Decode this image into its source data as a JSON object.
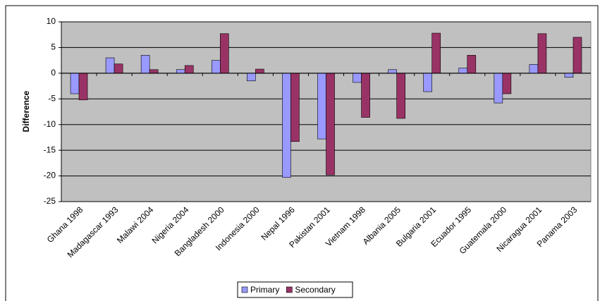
{
  "chart_data": {
    "type": "bar",
    "y_label": "Difference",
    "categories": [
      "Ghana 1998",
      "Madagascar 1993",
      "Malawi 2004",
      "Nigeria 2004",
      "Bangladesh 2000",
      "Indonesia 2000",
      "Nepal 1996",
      "Pakistan 2001",
      "Vietnam 1998",
      "Albania 2005",
      "Bulgaria 2001",
      "Ecuador 1995",
      "Guatemala 2000",
      "Nicaragua 2001",
      "Panama 2003"
    ],
    "series": [
      {
        "name": "Primary",
        "color": "#9999ff",
        "values": [
          -4,
          3,
          3.5,
          0.7,
          2.5,
          -1.5,
          -20.3,
          -12.8,
          -1.8,
          0.7,
          -3.6,
          1,
          -5.8,
          1.7,
          -0.8
        ]
      },
      {
        "name": "Secondary",
        "color": "#993366",
        "values": [
          -5.2,
          1.8,
          0.7,
          1.5,
          7.7,
          0.8,
          -13.3,
          -19.8,
          -8.6,
          -8.8,
          7.8,
          3.5,
          -4,
          7.7,
          7
        ]
      }
    ],
    "ylim": [
      -25,
      10
    ],
    "yticks": [
      -25,
      -20,
      -15,
      -10,
      -5,
      0,
      5,
      10
    ],
    "grid": true,
    "legend": "bottom"
  }
}
